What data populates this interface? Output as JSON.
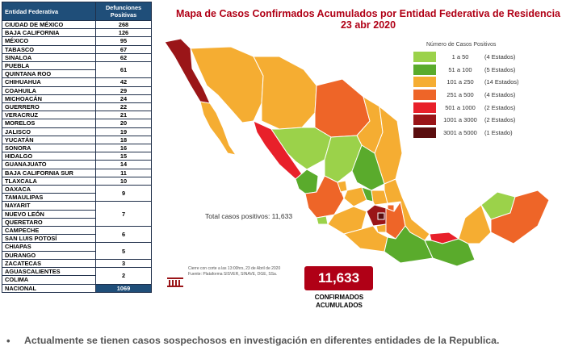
{
  "table": {
    "header_state": "Entidad Federativa",
    "header_value": "Defunciones Positivas",
    "rows": [
      {
        "state": "CIUDAD DE MÉXICO",
        "value": "268"
      },
      {
        "state": "BAJA CALIFORNIA",
        "value": "126"
      },
      {
        "state": "MÉXICO",
        "value": "95"
      },
      {
        "state": "TABASCO",
        "value": "67"
      },
      {
        "state": "SINALOA",
        "value": "62"
      },
      {
        "state": "PUEBLA",
        "value": "61"
      },
      {
        "state": "QUINTANA ROO",
        "value": "61"
      },
      {
        "state": "CHIHUAHUA",
        "value": "42"
      },
      {
        "state": "COAHUILA",
        "value": "29"
      },
      {
        "state": "MICHOACÁN",
        "value": "24"
      },
      {
        "state": "GUERRERO",
        "value": "22"
      },
      {
        "state": "VERACRUZ",
        "value": "21"
      },
      {
        "state": "MORELOS",
        "value": "20"
      },
      {
        "state": "JALISCO",
        "value": "19"
      },
      {
        "state": "YUCATÁN",
        "value": "18"
      },
      {
        "state": "SONORA",
        "value": "16"
      },
      {
        "state": "HIDALGO",
        "value": "15"
      },
      {
        "state": "GUANAJUATO",
        "value": "14"
      },
      {
        "state": "BAJA CALIFORNIA SUR",
        "value": "11"
      },
      {
        "state": "TLAXCALA",
        "value": "10"
      },
      {
        "state": "OAXACA",
        "value": "9"
      },
      {
        "state": "TAMAULIPAS",
        "value": "9"
      },
      {
        "state": "NAYARIT",
        "value": "7"
      },
      {
        "state": "NUEVO LEÓN",
        "value": "7"
      },
      {
        "state": "QUERETARO",
        "value": "7"
      },
      {
        "state": "CAMPECHE",
        "value": "6"
      },
      {
        "state": "SAN LUIS POTOSÍ",
        "value": "6"
      },
      {
        "state": "CHIAPAS",
        "value": "5"
      },
      {
        "state": "DURANGO",
        "value": "5"
      },
      {
        "state": "ZACATECAS",
        "value": "3"
      },
      {
        "state": "AGUASCALIENTES",
        "value": "2"
      },
      {
        "state": "COLIMA",
        "value": "2"
      }
    ],
    "total_state": "NACIONAL",
    "total_value": "1069"
  },
  "map": {
    "title_line1": "Mapa de Casos Confirmados Acumulados por Entidad Federativa de Residencia",
    "title_line2": "23 abr 2020",
    "legend_title": "Número de Casos Positivos",
    "legend": [
      {
        "range": "1 a 50",
        "count": "(4 Estados)",
        "color": "#9bd24a"
      },
      {
        "range": "51 a 100",
        "count": "(5 Estados)",
        "color": "#5aab2c"
      },
      {
        "range": "101 a 250",
        "count": "(14 Estados)",
        "color": "#f5ad32"
      },
      {
        "range": "251 a 500",
        "count": "(4 Estados)",
        "color": "#ee6528"
      },
      {
        "range": "501 a 1000",
        "count": "(2 Estados)",
        "color": "#e8202a"
      },
      {
        "range": "1001 a 3000",
        "count": "(2 Estados)",
        "color": "#9a1518"
      },
      {
        "range": "3001 a 5000",
        "count": "(1 Estado)",
        "color": "#5b0e0f"
      }
    ],
    "total_positive_label": "Total casos positivos: 11,633",
    "footnote_line1": "Cierre con corte a las 13:00hrs, 23 de Abril de 2020",
    "footnote_line2": "Fuente: Plataforma SISVER, SINAVE, DGE, SSa.",
    "big_total": "11,633",
    "big_label_line1": "CONFIRMADOS",
    "big_label_line2": "ACUMULADOS"
  },
  "bullet_text": "Actualmente se tienen casos sospechosos en investigación en diferentes entidades de la Republica."
}
